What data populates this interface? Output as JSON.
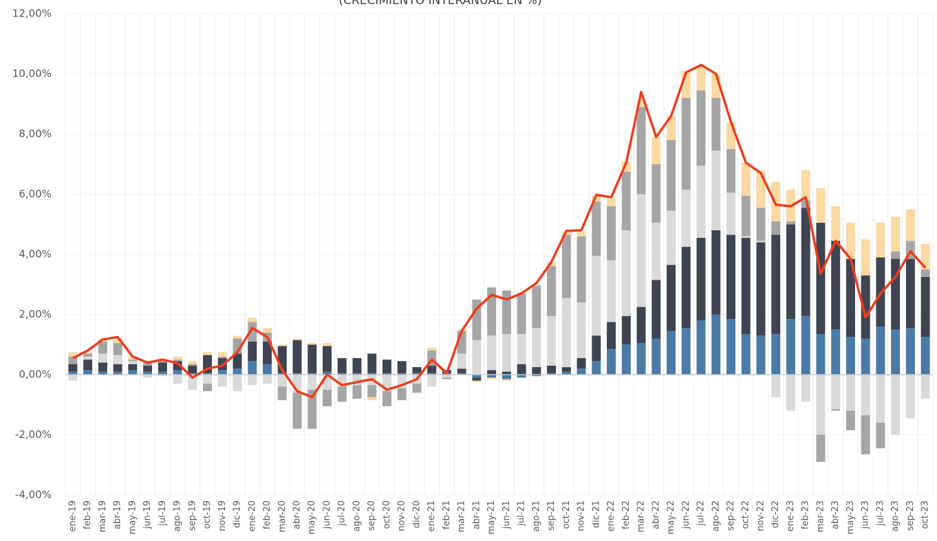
{
  "chart_data": {
    "type": "bar",
    "subtitle": "(CRECIMIENTO INTERANUAL EN %)",
    "categories": [
      "ene-19",
      "feb-19",
      "mar-19",
      "abr-19",
      "may-19",
      "jun-19",
      "jul-19",
      "ago-19",
      "sep-19",
      "oct-19",
      "nov-19",
      "dic-19",
      "ene-20",
      "feb-20",
      "mar-20",
      "abr-20",
      "may-20",
      "jun-20",
      "jul-20",
      "ago-20",
      "sep-20",
      "oct-20",
      "nov-20",
      "dic-20",
      "ene-21",
      "feb-21",
      "mar-21",
      "abr-21",
      "may-21",
      "jun-21",
      "jul-21",
      "ago-21",
      "sep-21",
      "oct-21",
      "nov-21",
      "dic-21",
      "ene-22",
      "feb-22",
      "mar-22",
      "abr-22",
      "may-22",
      "jun-22",
      "jul-22",
      "ago-22",
      "sep-22",
      "oct-22",
      "nov-22",
      "dic-22",
      "ene-23",
      "feb-23",
      "mar-23",
      "abr-23",
      "may-23",
      "jun-23",
      "jul-23",
      "ago-23",
      "sep-23",
      "oct-23"
    ],
    "series": [
      {
        "color": "#4a7ba6",
        "values": [
          0.1,
          0.15,
          0.1,
          0.1,
          0.15,
          0.1,
          0.1,
          0.15,
          0.05,
          0.05,
          0.15,
          0.2,
          0.45,
          0.35,
          0.05,
          0.05,
          0.05,
          0.1,
          0.05,
          0.05,
          0.05,
          0.05,
          0.05,
          0.05,
          0.05,
          0.05,
          0.05,
          -0.1,
          -0.1,
          -0.15,
          -0.1,
          -0.05,
          0.05,
          0.1,
          0.2,
          0.45,
          0.85,
          1.0,
          1.05,
          1.2,
          1.45,
          1.55,
          1.8,
          2.0,
          1.85,
          1.35,
          1.3,
          1.35,
          1.85,
          1.95,
          1.35,
          1.5,
          1.25,
          1.2,
          1.6,
          1.5,
          1.55,
          1.25
        ]
      },
      {
        "color": "#3f4451",
        "values": [
          0.25,
          0.35,
          0.3,
          0.25,
          0.2,
          0.2,
          0.3,
          0.3,
          0.25,
          0.6,
          0.4,
          0.5,
          0.65,
          0.75,
          0.9,
          1.1,
          0.95,
          0.85,
          0.5,
          0.5,
          0.65,
          0.45,
          0.4,
          0.2,
          0.25,
          0.1,
          0.15,
          -0.1,
          0.15,
          0.1,
          0.35,
          0.25,
          0.25,
          0.15,
          0.35,
          0.85,
          0.9,
          0.95,
          1.2,
          1.95,
          2.2,
          2.7,
          2.75,
          2.8,
          2.8,
          3.2,
          3.1,
          3.3,
          3.15,
          3.6,
          3.7,
          2.95,
          2.6,
          2.1,
          2.3,
          2.35,
          2.3,
          2.0
        ]
      },
      {
        "color": "#d9d9d9",
        "values": [
          -0.2,
          0.1,
          0.3,
          0.3,
          0.1,
          -0.1,
          -0.05,
          -0.3,
          -0.5,
          -0.3,
          -0.4,
          -0.55,
          -0.35,
          -0.3,
          -0.4,
          -0.6,
          -0.5,
          -0.5,
          -0.4,
          -0.35,
          -0.35,
          -0.55,
          -0.45,
          -0.3,
          -0.4,
          -0.1,
          0.5,
          1.15,
          1.15,
          1.25,
          1.0,
          1.3,
          1.65,
          2.3,
          1.85,
          2.65,
          2.05,
          2.85,
          3.75,
          1.9,
          1.8,
          1.9,
          2.4,
          2.65,
          1.4,
          0.05,
          0.05,
          -0.75,
          -1.2,
          -0.9,
          -2.0,
          -1.15,
          -1.2,
          -1.35,
          -1.6,
          -2.0,
          -1.45,
          -0.8
        ]
      },
      {
        "color": "#a5a5a5",
        "values": [
          0.25,
          0.1,
          0.4,
          0.4,
          0.05,
          0.1,
          0.05,
          0.05,
          0.05,
          -0.25,
          0.05,
          0.5,
          0.65,
          0.3,
          -0.45,
          -1.2,
          -1.3,
          -0.55,
          -0.5,
          -0.45,
          -0.4,
          -0.5,
          -0.4,
          -0.3,
          0.5,
          -0.05,
          0.75,
          1.35,
          1.6,
          1.45,
          1.35,
          1.4,
          1.65,
          2.1,
          2.2,
          1.8,
          1.8,
          1.95,
          2.9,
          1.95,
          2.35,
          3.05,
          2.5,
          1.75,
          1.45,
          1.35,
          1.1,
          0.45,
          0.1,
          0.25,
          -0.9,
          -0.05,
          -0.65,
          -1.3,
          -0.85,
          0.25,
          0.6,
          0.25
        ]
      },
      {
        "color": "#fbd9a3",
        "values": [
          0.15,
          0.05,
          0.1,
          0.15,
          0.1,
          0.05,
          0.05,
          0.1,
          0.1,
          0.1,
          0.15,
          0.1,
          0.15,
          0.15,
          0.05,
          0.05,
          0.05,
          0.1,
          0,
          0,
          -0.1,
          0,
          0,
          0,
          0.1,
          0,
          0.05,
          -0.05,
          -0.05,
          -0.05,
          0.05,
          0.05,
          0.15,
          0.1,
          0.15,
          0.2,
          0.25,
          0.35,
          0.2,
          0.9,
          0.8,
          0.9,
          0.85,
          0.8,
          0.9,
          1.1,
          1.25,
          1.3,
          1.05,
          1.0,
          1.15,
          1.15,
          1.2,
          1.2,
          1.15,
          1.15,
          1.05,
          0.85
        ]
      }
    ],
    "line": {
      "color": "#f03c1e",
      "values": [
        0.55,
        0.8,
        1.17,
        1.25,
        0.6,
        0.4,
        0.5,
        0.38,
        -0.1,
        0.2,
        0.3,
        0.75,
        1.55,
        1.25,
        0.15,
        -0.55,
        -0.75,
        0.0,
        -0.35,
        -0.25,
        -0.15,
        -0.5,
        -0.35,
        -0.15,
        0.5,
        0.05,
        1.45,
        2.2,
        2.65,
        2.5,
        2.7,
        3.05,
        3.75,
        4.78,
        4.8,
        5.98,
        5.9,
        7.05,
        9.4,
        7.9,
        8.6,
        10.05,
        10.3,
        10.0,
        8.4,
        7.05,
        6.7,
        5.65,
        5.6,
        5.9,
        3.35,
        4.45,
        3.85,
        1.9,
        2.7,
        3.25,
        4.1,
        3.55
      ]
    },
    "ylim": [
      -4,
      12
    ],
    "yticks": [
      {
        "value": -4,
        "label": "-4,00%"
      },
      {
        "value": -2,
        "label": "-2,00%"
      },
      {
        "value": 0,
        "label": "0,00%"
      },
      {
        "value": 2,
        "label": "2,00%"
      },
      {
        "value": 4,
        "label": "4,00%"
      },
      {
        "value": 6,
        "label": "6,00%"
      },
      {
        "value": 8,
        "label": "8,00%"
      },
      {
        "value": 10,
        "label": "10,00%"
      },
      {
        "value": 12,
        "label": "12,00%"
      }
    ],
    "grid": true
  }
}
